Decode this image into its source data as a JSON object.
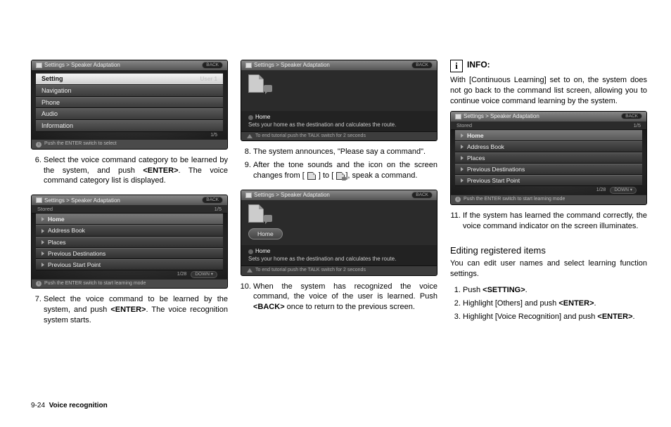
{
  "footer": {
    "page": "9-24",
    "section": "Voice recognition"
  },
  "shot_header_title": "Settings > Speaker Adaptation",
  "back_label": "BACK",
  "shot1": {
    "rows": [
      {
        "label": "Setting",
        "right": "User 1",
        "selected": true
      },
      {
        "label": "Navigation"
      },
      {
        "label": "Phone"
      },
      {
        "label": "Audio"
      },
      {
        "label": "Information"
      }
    ],
    "pager": "1/5",
    "footer": "Push the ENTER switch to select"
  },
  "step6": "Select the voice command category to be learned by the system, and push <ENTER>. The voice command category list is displayed.",
  "shot2": {
    "stored_label": "Stored",
    "stored_right": "1/5",
    "rows": [
      "Home",
      "Address Book",
      "Places",
      "Previous Destinations",
      "Previous Start Point"
    ],
    "pager": "1/28",
    "down_label": "DOWN",
    "footer": "Push the ENTER switch to start learning mode"
  },
  "step7": "Select the voice command to be learned by the system, and push <ENTER>. The voice recognition system starts.",
  "shot3": {
    "home_label": "Home",
    "desc": "Sets your home as the destination and calculates the route.",
    "talk_footer": "To end tutorial push the TALK switch for 2 seconds"
  },
  "step8": "The system announces, \"Please say a command\".",
  "step9_a": "After the tone sounds and the icon on the screen changes from [",
  "step9_b": "] to [",
  "step9_c": "], speak a command.",
  "shot4": {
    "home_pill": "Home",
    "home_label": "Home",
    "desc": "Sets your home as the destination and calculates the route.",
    "talk_footer": "To end tutorial push the TALK switch for 2 seconds"
  },
  "step10": "When the system has recognized the voice command, the voice of the user is learned. Push <BACK> once to return to the previous screen.",
  "info_title": "INFO:",
  "info_body": "With [Continuous Learning] set to on, the system does not go back to the command list screen, allowing you to continue voice command learning by the system.",
  "step11": "If the system has learned the command correctly, the voice command indicator on the screen illuminates.",
  "edit_heading": "Editing registered items",
  "edit_intro": "You can edit user names and select learning function settings.",
  "edit_steps": [
    "Push <SETTING>.",
    "Highlight [Others] and push <ENTER>.",
    "Highlight [Voice Recognition] and push <ENTER>."
  ]
}
